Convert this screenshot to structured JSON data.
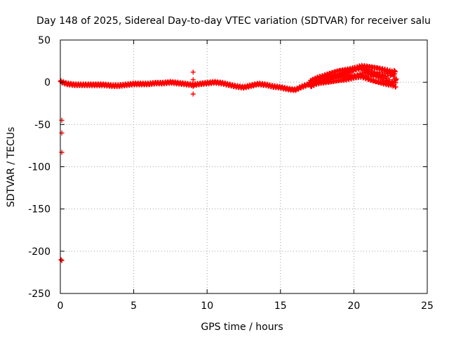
{
  "chart_data": {
    "type": "scatter",
    "title": "Day 148 of 2025, Sidereal Day-to-day VTEC variation (SDTVAR) for receiver salu",
    "xlabel": "GPS time / hours",
    "ylabel": "SDTVAR / TECUs",
    "xlim": [
      0,
      25
    ],
    "ylim": [
      -250,
      50
    ],
    "xticks": [
      0,
      5,
      10,
      15,
      20,
      25
    ],
    "yticks": [
      50,
      0,
      -50,
      -100,
      -150,
      -200,
      -250
    ],
    "grid": true,
    "marker": "+",
    "color": "#ff0000",
    "trend": [
      [
        0.0,
        1
      ],
      [
        0.3,
        -1
      ],
      [
        0.5,
        -2
      ],
      [
        1.0,
        -3
      ],
      [
        1.5,
        -3
      ],
      [
        2.0,
        -3
      ],
      [
        2.5,
        -3
      ],
      [
        3.0,
        -3
      ],
      [
        3.5,
        -4
      ],
      [
        4.0,
        -4
      ],
      [
        4.5,
        -3
      ],
      [
        5.0,
        -2
      ],
      [
        5.5,
        -2
      ],
      [
        6.0,
        -2
      ],
      [
        6.5,
        -1
      ],
      [
        7.0,
        -1
      ],
      [
        7.5,
        0
      ],
      [
        8.0,
        -1
      ],
      [
        8.5,
        -2
      ],
      [
        9.0,
        -3
      ],
      [
        9.5,
        -2
      ],
      [
        10.0,
        -1
      ],
      [
        10.5,
        0
      ],
      [
        11.0,
        -1
      ],
      [
        11.5,
        -3
      ],
      [
        12.0,
        -5
      ],
      [
        12.5,
        -6
      ],
      [
        13.0,
        -4
      ],
      [
        13.5,
        -2
      ],
      [
        14.0,
        -3
      ],
      [
        14.5,
        -5
      ],
      [
        15.0,
        -6
      ],
      [
        15.5,
        -8
      ],
      [
        16.0,
        -9
      ],
      [
        16.5,
        -5
      ],
      [
        17.0,
        -2
      ],
      [
        17.5,
        2
      ],
      [
        18.0,
        4
      ],
      [
        18.5,
        6
      ],
      [
        19.0,
        8
      ],
      [
        19.5,
        9
      ],
      [
        20.0,
        11
      ],
      [
        20.5,
        13
      ],
      [
        21.0,
        11
      ],
      [
        21.5,
        9
      ],
      [
        22.0,
        7
      ],
      [
        22.5,
        5
      ],
      [
        22.9,
        4
      ]
    ],
    "outliers": [
      [
        0.1,
        -45
      ],
      [
        0.1,
        -60
      ],
      [
        0.1,
        -83
      ],
      [
        0.05,
        -210
      ],
      [
        0.1,
        -211
      ],
      [
        9.05,
        12
      ],
      [
        9.05,
        3
      ],
      [
        9.05,
        -5
      ],
      [
        9.05,
        -14
      ]
    ]
  }
}
